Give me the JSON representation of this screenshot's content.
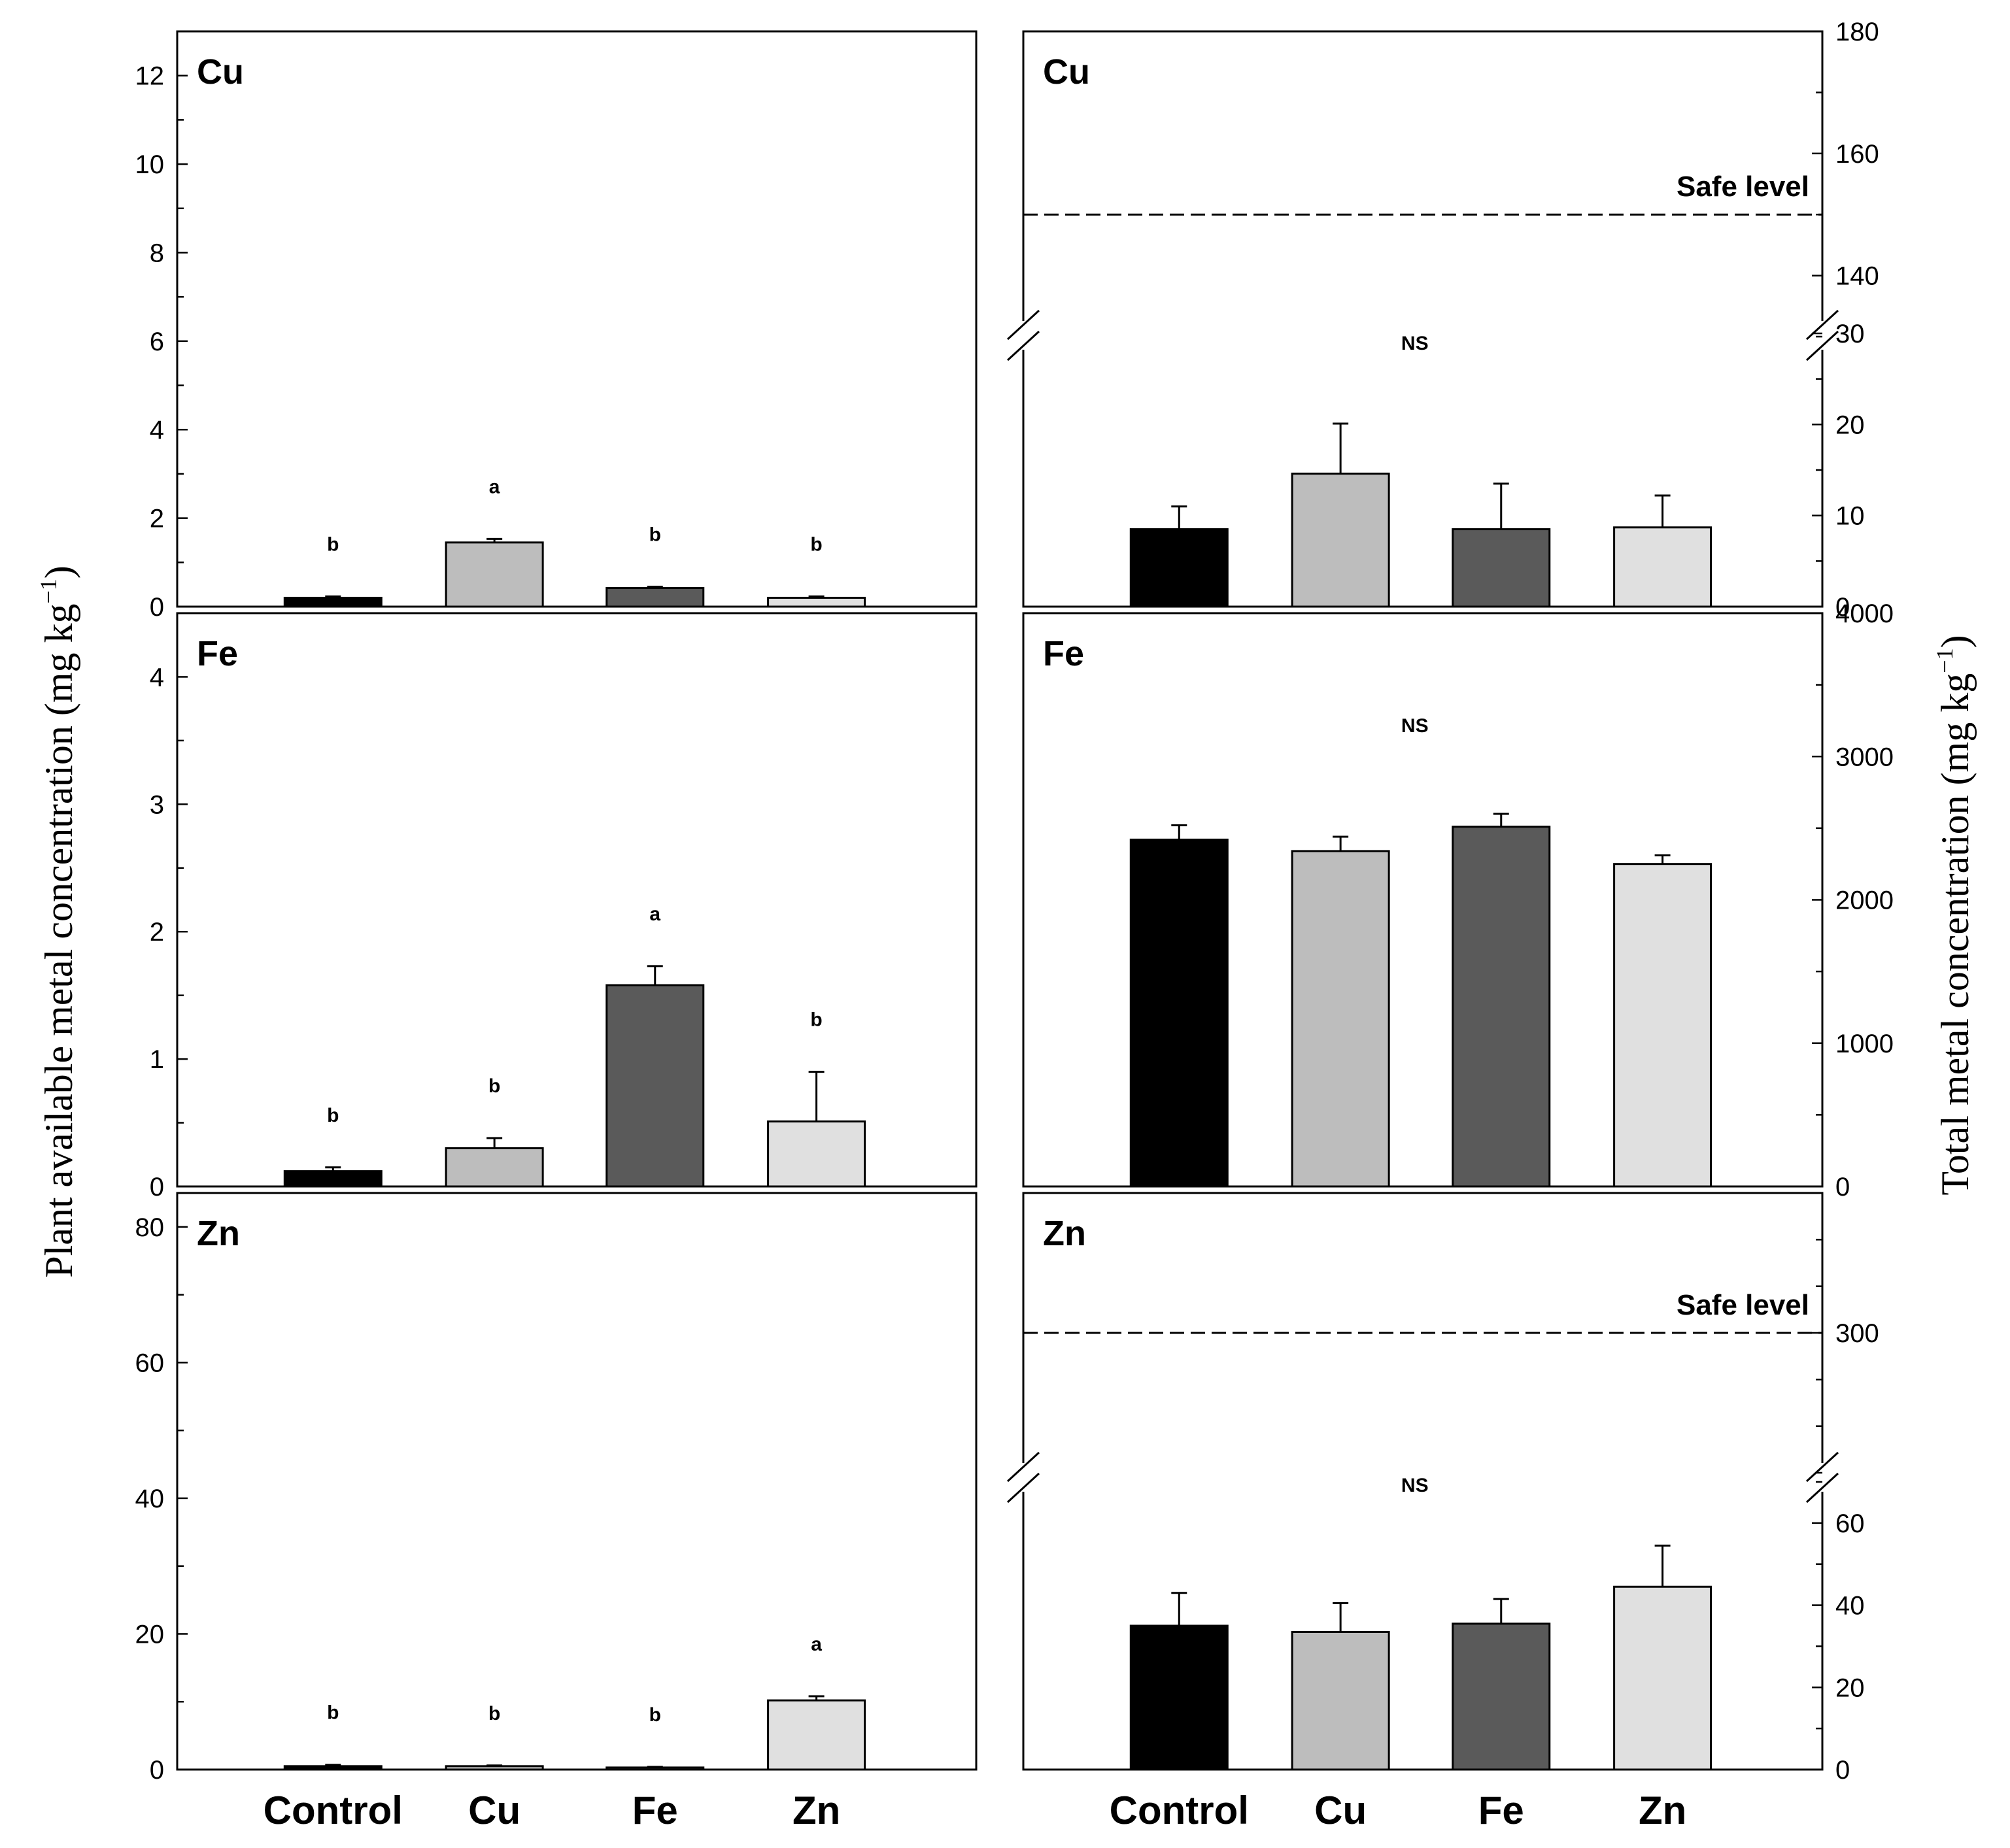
{
  "figure": {
    "left_ylabel": "Plant available metal concentration (mg kg",
    "right_ylabel": "Total metal concentration (mg kg",
    "ylabel_exponent": "−1",
    "ylabel_close": ")",
    "categories": [
      "Control",
      "Cu",
      "Fe",
      "Zn"
    ],
    "bar_colors": [
      "#000000",
      "#bdbdbd",
      "#5a5a5a",
      "#e0e0e0"
    ]
  },
  "chart_data": [
    {
      "type": "bar",
      "title": "Cu",
      "side": "left",
      "categories": [
        "Control",
        "Cu",
        "Fe",
        "Zn"
      ],
      "values": [
        0.2,
        1.45,
        0.42,
        0.2
      ],
      "errors": [
        0.03,
        0.08,
        0.03,
        0.03
      ],
      "sig": [
        "b",
        "a",
        "b",
        "b"
      ],
      "ylim": [
        0,
        13
      ],
      "ticks": [
        0,
        2,
        4,
        6,
        8,
        10,
        12
      ],
      "minor_step": 1
    },
    {
      "type": "bar",
      "title": "Fe",
      "side": "left",
      "categories": [
        "Control",
        "Cu",
        "Fe",
        "Zn"
      ],
      "values": [
        0.12,
        0.3,
        1.58,
        0.51
      ],
      "errors": [
        0.03,
        0.08,
        0.15,
        0.39
      ],
      "sig": [
        "b",
        "b",
        "a",
        "b"
      ],
      "ylim": [
        0,
        4.5
      ],
      "ticks": [
        0,
        1,
        2,
        3,
        4
      ],
      "minor_step": 0.5
    },
    {
      "type": "bar",
      "title": "Zn",
      "side": "left",
      "categories": [
        "Control",
        "Cu",
        "Fe",
        "Zn"
      ],
      "values": [
        0.5,
        0.5,
        0.3,
        10.2
      ],
      "errors": [
        0.2,
        0.1,
        0.1,
        0.6
      ],
      "sig": [
        "b",
        "b",
        "b",
        "a"
      ],
      "ylim": [
        0,
        85
      ],
      "ticks": [
        0,
        20,
        40,
        60,
        80
      ],
      "minor_step": 10
    },
    {
      "type": "bar",
      "title": "Cu",
      "side": "right",
      "broken_axis": true,
      "categories": [
        "Control",
        "Cu",
        "Fe",
        "Zn"
      ],
      "values": [
        8.5,
        14.6,
        8.5,
        8.7
      ],
      "errors": [
        2.5,
        5.5,
        5.0,
        3.5
      ],
      "sig_all": "NS",
      "safe_level": 150,
      "safe_label": "Safe level",
      "lower_ylim": [
        0,
        30
      ],
      "lower_ticks": [
        0,
        10,
        20,
        30
      ],
      "upper_ylim": [
        130,
        180
      ],
      "upper_ticks": [
        140,
        160,
        180
      ],
      "minor_lower": 5,
      "minor_upper": 10
    },
    {
      "type": "bar",
      "title": "Fe",
      "side": "right",
      "categories": [
        "Control",
        "Cu",
        "Fe",
        "Zn"
      ],
      "values": [
        2420,
        2340,
        2510,
        2250
      ],
      "errors": [
        100,
        100,
        90,
        60
      ],
      "sig_all": "NS",
      "ylim": [
        0,
        4000
      ],
      "ticks": [
        0,
        1000,
        2000,
        3000,
        4000
      ],
      "minor_step": 500
    },
    {
      "type": "bar",
      "title": "Zn",
      "side": "right",
      "broken_axis": true,
      "categories": [
        "Control",
        "Cu",
        "Fe",
        "Zn"
      ],
      "values": [
        35,
        33.5,
        35.5,
        44.5
      ],
      "errors": [
        8,
        7,
        6,
        10
      ],
      "sig_all": "NS",
      "safe_level": 300,
      "safe_label": "Safe level",
      "lower_ylim": [
        0,
        70
      ],
      "lower_ticks": [
        0,
        20,
        40,
        60
      ],
      "upper_ylim": [
        270,
        330
      ],
      "upper_ticks": [
        300
      ],
      "minor_lower": 10,
      "minor_upper": 10
    }
  ]
}
